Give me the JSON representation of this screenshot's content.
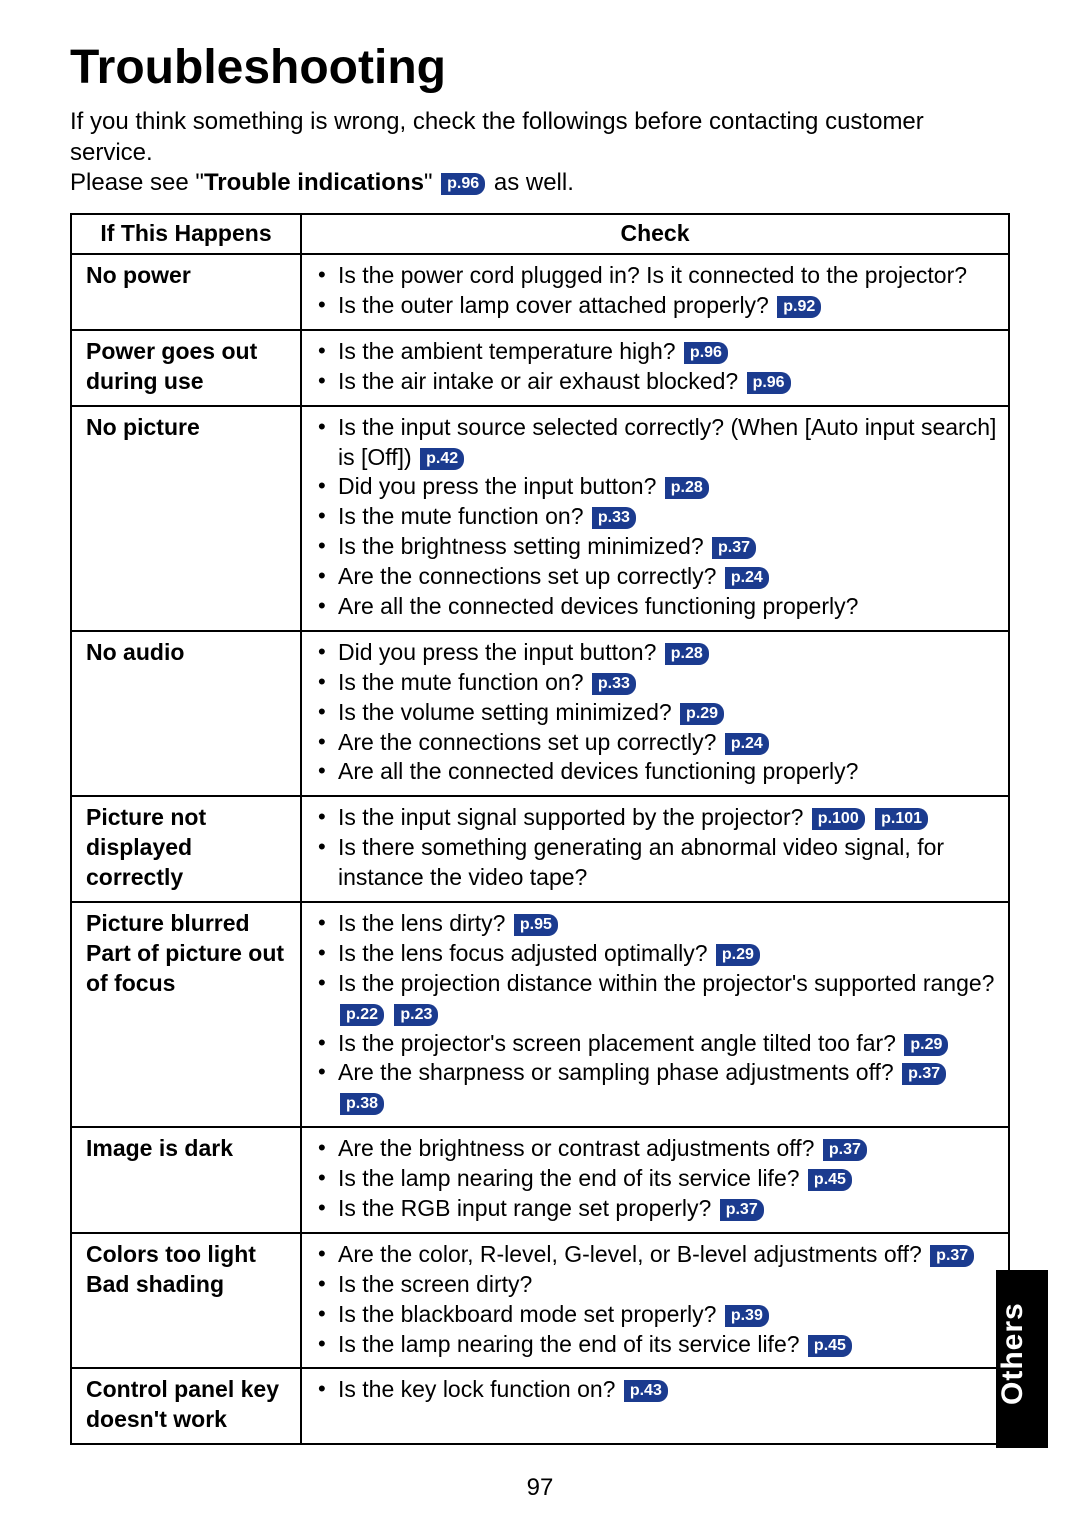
{
  "title": "Troubleshooting",
  "intro": {
    "line1": "If you think something is wrong, check the followings before contacting customer service.",
    "line2a": "Please see \"",
    "line2bold": "Trouble indications",
    "line2b": "\" ",
    "line2ref": "p.96",
    "line2c": " as well."
  },
  "headers": {
    "col1": "If This Happens",
    "col2": "Check"
  },
  "rows": [
    {
      "symptom": "No power",
      "checks": [
        [
          {
            "t": "Is the power cord plugged in? Is it connected to the projector?"
          }
        ],
        [
          {
            "t": "Is the outer lamp cover attached properly? "
          },
          {
            "ref": "p.92"
          }
        ]
      ]
    },
    {
      "symptom": "Power goes out during use",
      "checks": [
        [
          {
            "t": "Is the ambient temperature high? "
          },
          {
            "ref": "p.96"
          }
        ],
        [
          {
            "t": "Is the air intake or air exhaust blocked? "
          },
          {
            "ref": "p.96"
          }
        ]
      ]
    },
    {
      "symptom": "No picture",
      "checks": [
        [
          {
            "t": "Is the input source selected correctly? (When [Auto input search] is [Off]) "
          },
          {
            "ref": "p.42"
          }
        ],
        [
          {
            "t": "Did you press the input button? "
          },
          {
            "ref": "p.28"
          }
        ],
        [
          {
            "t": "Is the mute function on? "
          },
          {
            "ref": "p.33"
          }
        ],
        [
          {
            "t": "Is the brightness setting minimized? "
          },
          {
            "ref": "p.37"
          }
        ],
        [
          {
            "t": "Are the connections set up correctly? "
          },
          {
            "ref": "p.24"
          }
        ],
        [
          {
            "t": "Are all the connected devices functioning properly?"
          }
        ]
      ]
    },
    {
      "symptom": "No audio",
      "checks": [
        [
          {
            "t": "Did you press the input button? "
          },
          {
            "ref": "p.28"
          }
        ],
        [
          {
            "t": "Is the mute function on? "
          },
          {
            "ref": "p.33"
          }
        ],
        [
          {
            "t": "Is the volume setting minimized? "
          },
          {
            "ref": "p.29"
          }
        ],
        [
          {
            "t": "Are the connections set up correctly? "
          },
          {
            "ref": "p.24"
          }
        ],
        [
          {
            "t": "Are all the connected devices functioning properly?"
          }
        ]
      ]
    },
    {
      "symptom": "Picture not displayed correctly",
      "checks": [
        [
          {
            "t": "Is the input signal supported by the projector? "
          },
          {
            "ref": "p.100"
          },
          {
            "t": " "
          },
          {
            "ref": "p.101"
          }
        ],
        [
          {
            "t": "Is there something generating an abnormal video signal, for instance the video tape?"
          }
        ]
      ]
    },
    {
      "symptom": "Picture blurred Part of picture out of focus",
      "checks": [
        [
          {
            "t": "Is the lens dirty? "
          },
          {
            "ref": "p.95"
          }
        ],
        [
          {
            "t": "Is the lens focus adjusted optimally? "
          },
          {
            "ref": "p.29"
          }
        ],
        [
          {
            "t": "Is the projection distance within the projector's supported range? "
          },
          {
            "ref": "p.22"
          },
          {
            "t": " "
          },
          {
            "ref": "p.23"
          }
        ],
        [
          {
            "t": "Is the projector's screen placement angle tilted too far? "
          },
          {
            "ref": "p.29"
          }
        ],
        [
          {
            "t": "Are the sharpness or sampling phase adjustments off? "
          },
          {
            "ref": "p.37"
          },
          {
            "t": " "
          },
          {
            "ref": "p.38"
          }
        ]
      ]
    },
    {
      "symptom": "Image is dark",
      "checks": [
        [
          {
            "t": "Are the brightness or contrast adjustments off? "
          },
          {
            "ref": "p.37"
          }
        ],
        [
          {
            "t": "Is the lamp nearing the end of its service life? "
          },
          {
            "ref": "p.45"
          }
        ],
        [
          {
            "t": "Is the RGB input range set properly? "
          },
          {
            "ref": "p.37"
          }
        ]
      ]
    },
    {
      "symptom": "Colors too light Bad shading",
      "checks": [
        [
          {
            "t": "Are the color, R-level, G-level, or B-level adjustments off? "
          },
          {
            "ref": "p.37"
          }
        ],
        [
          {
            "t": "Is the screen dirty?"
          }
        ],
        [
          {
            "t": "Is the blackboard mode set properly? "
          },
          {
            "ref": "p.39"
          }
        ],
        [
          {
            "t": "Is the lamp nearing the end of its service life? "
          },
          {
            "ref": "p.45"
          }
        ]
      ]
    },
    {
      "symptom": "Control panel key doesn't work",
      "checks": [
        [
          {
            "t": "Is the key lock function on? "
          },
          {
            "ref": "p.43"
          }
        ]
      ]
    }
  ],
  "sideTab": "Others",
  "pageNumber": "97"
}
